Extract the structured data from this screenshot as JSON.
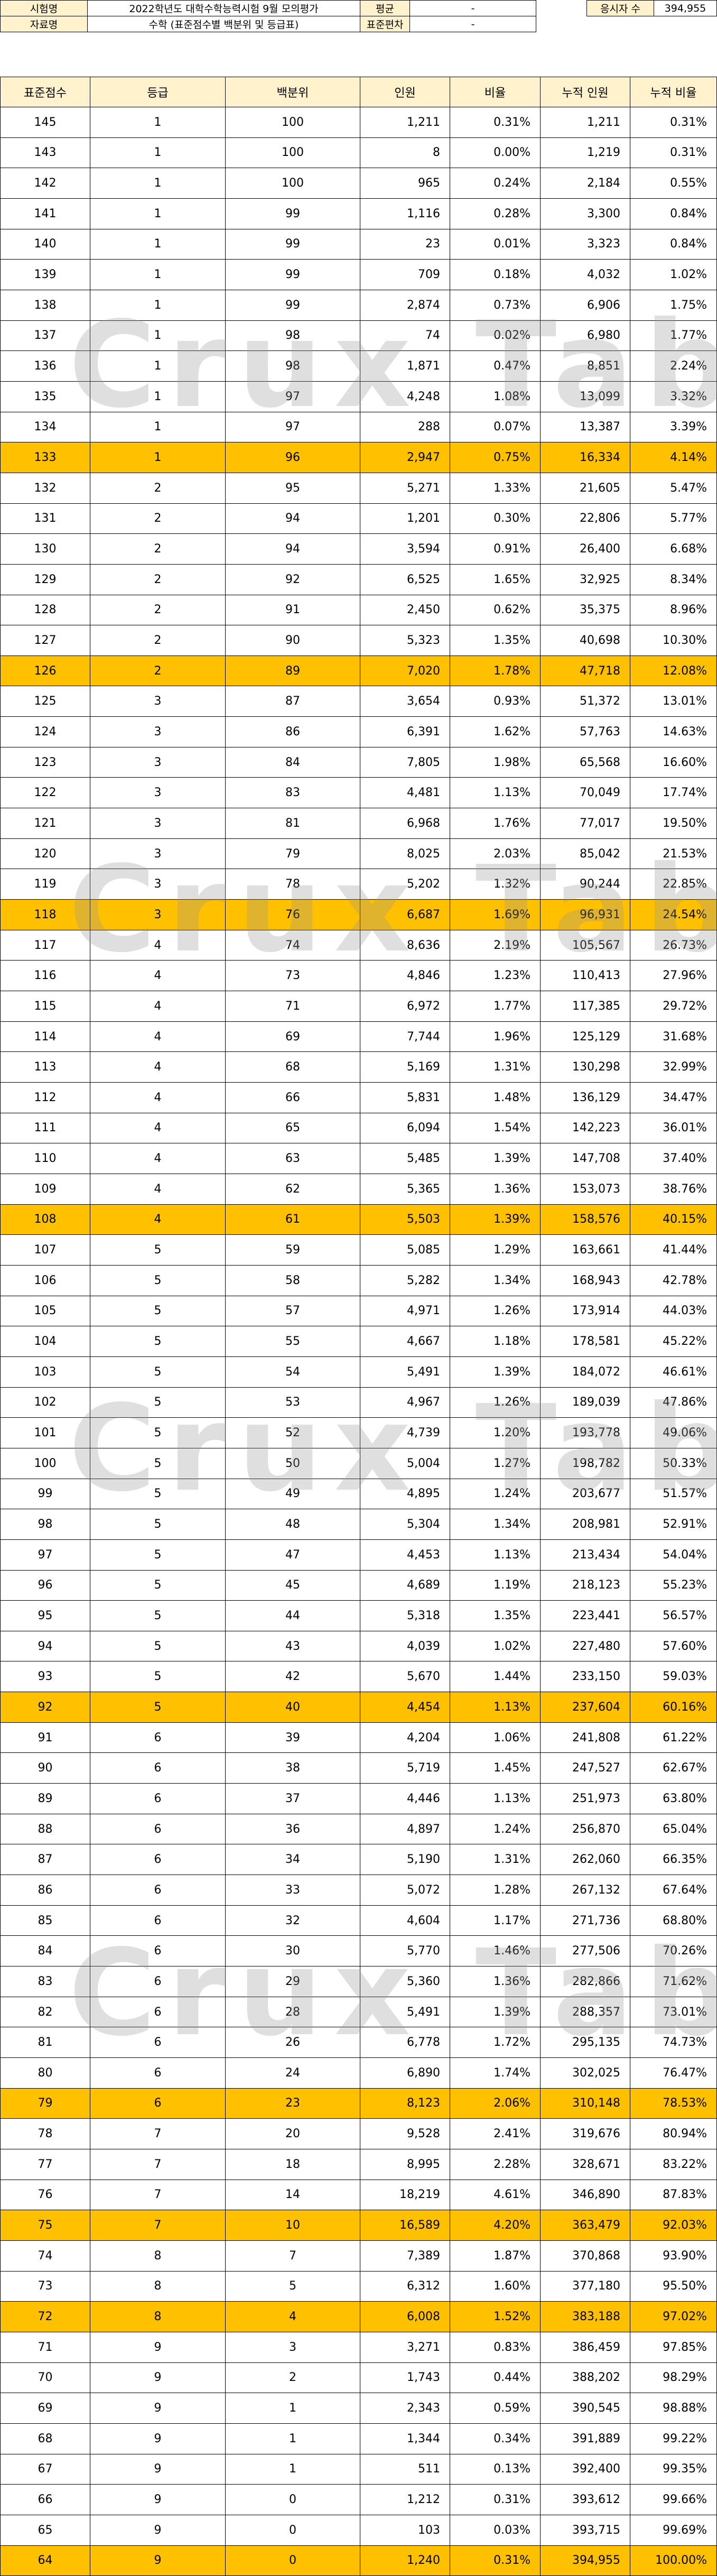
{
  "info": {
    "exam_label": "시험명",
    "exam_value": "2022학년도 대학수학능력시험 9월 모의평가",
    "data_label": "자료명",
    "data_value": "수학 (표준점수별 백분위 및 등급표)",
    "mean_label": "평균",
    "mean_value": "-",
    "sd_label": "표준편차",
    "sd_value": "-",
    "count_label": "응시자 수",
    "count_value": "394,955"
  },
  "watermark": "Crux Table",
  "columns": [
    "표준점수",
    "등급",
    "백분위",
    "인원",
    "비율",
    "누적 인원",
    "누적 비율"
  ],
  "rows": [
    {
      "score": "145",
      "grade": "1",
      "pct": "100",
      "n": "1,211",
      "ratio": "0.31%",
      "cum": "1,211",
      "cum_ratio": "0.31%",
      "hl": false
    },
    {
      "score": "143",
      "grade": "1",
      "pct": "100",
      "n": "8",
      "ratio": "0.00%",
      "cum": "1,219",
      "cum_ratio": "0.31%",
      "hl": false
    },
    {
      "score": "142",
      "grade": "1",
      "pct": "100",
      "n": "965",
      "ratio": "0.24%",
      "cum": "2,184",
      "cum_ratio": "0.55%",
      "hl": false
    },
    {
      "score": "141",
      "grade": "1",
      "pct": "99",
      "n": "1,116",
      "ratio": "0.28%",
      "cum": "3,300",
      "cum_ratio": "0.84%",
      "hl": false
    },
    {
      "score": "140",
      "grade": "1",
      "pct": "99",
      "n": "23",
      "ratio": "0.01%",
      "cum": "3,323",
      "cum_ratio": "0.84%",
      "hl": false
    },
    {
      "score": "139",
      "grade": "1",
      "pct": "99",
      "n": "709",
      "ratio": "0.18%",
      "cum": "4,032",
      "cum_ratio": "1.02%",
      "hl": false
    },
    {
      "score": "138",
      "grade": "1",
      "pct": "99",
      "n": "2,874",
      "ratio": "0.73%",
      "cum": "6,906",
      "cum_ratio": "1.75%",
      "hl": false
    },
    {
      "score": "137",
      "grade": "1",
      "pct": "98",
      "n": "74",
      "ratio": "0.02%",
      "cum": "6,980",
      "cum_ratio": "1.77%",
      "hl": false
    },
    {
      "score": "136",
      "grade": "1",
      "pct": "98",
      "n": "1,871",
      "ratio": "0.47%",
      "cum": "8,851",
      "cum_ratio": "2.24%",
      "hl": false
    },
    {
      "score": "135",
      "grade": "1",
      "pct": "97",
      "n": "4,248",
      "ratio": "1.08%",
      "cum": "13,099",
      "cum_ratio": "3.32%",
      "hl": false
    },
    {
      "score": "134",
      "grade": "1",
      "pct": "97",
      "n": "288",
      "ratio": "0.07%",
      "cum": "13,387",
      "cum_ratio": "3.39%",
      "hl": false
    },
    {
      "score": "133",
      "grade": "1",
      "pct": "96",
      "n": "2,947",
      "ratio": "0.75%",
      "cum": "16,334",
      "cum_ratio": "4.14%",
      "hl": true
    },
    {
      "score": "132",
      "grade": "2",
      "pct": "95",
      "n": "5,271",
      "ratio": "1.33%",
      "cum": "21,605",
      "cum_ratio": "5.47%",
      "hl": false
    },
    {
      "score": "131",
      "grade": "2",
      "pct": "94",
      "n": "1,201",
      "ratio": "0.30%",
      "cum": "22,806",
      "cum_ratio": "5.77%",
      "hl": false
    },
    {
      "score": "130",
      "grade": "2",
      "pct": "94",
      "n": "3,594",
      "ratio": "0.91%",
      "cum": "26,400",
      "cum_ratio": "6.68%",
      "hl": false
    },
    {
      "score": "129",
      "grade": "2",
      "pct": "92",
      "n": "6,525",
      "ratio": "1.65%",
      "cum": "32,925",
      "cum_ratio": "8.34%",
      "hl": false
    },
    {
      "score": "128",
      "grade": "2",
      "pct": "91",
      "n": "2,450",
      "ratio": "0.62%",
      "cum": "35,375",
      "cum_ratio": "8.96%",
      "hl": false
    },
    {
      "score": "127",
      "grade": "2",
      "pct": "90",
      "n": "5,323",
      "ratio": "1.35%",
      "cum": "40,698",
      "cum_ratio": "10.30%",
      "hl": false
    },
    {
      "score": "126",
      "grade": "2",
      "pct": "89",
      "n": "7,020",
      "ratio": "1.78%",
      "cum": "47,718",
      "cum_ratio": "12.08%",
      "hl": true
    },
    {
      "score": "125",
      "grade": "3",
      "pct": "87",
      "n": "3,654",
      "ratio": "0.93%",
      "cum": "51,372",
      "cum_ratio": "13.01%",
      "hl": false
    },
    {
      "score": "124",
      "grade": "3",
      "pct": "86",
      "n": "6,391",
      "ratio": "1.62%",
      "cum": "57,763",
      "cum_ratio": "14.63%",
      "hl": false
    },
    {
      "score": "123",
      "grade": "3",
      "pct": "84",
      "n": "7,805",
      "ratio": "1.98%",
      "cum": "65,568",
      "cum_ratio": "16.60%",
      "hl": false
    },
    {
      "score": "122",
      "grade": "3",
      "pct": "83",
      "n": "4,481",
      "ratio": "1.13%",
      "cum": "70,049",
      "cum_ratio": "17.74%",
      "hl": false
    },
    {
      "score": "121",
      "grade": "3",
      "pct": "81",
      "n": "6,968",
      "ratio": "1.76%",
      "cum": "77,017",
      "cum_ratio": "19.50%",
      "hl": false
    },
    {
      "score": "120",
      "grade": "3",
      "pct": "79",
      "n": "8,025",
      "ratio": "2.03%",
      "cum": "85,042",
      "cum_ratio": "21.53%",
      "hl": false
    },
    {
      "score": "119",
      "grade": "3",
      "pct": "78",
      "n": "5,202",
      "ratio": "1.32%",
      "cum": "90,244",
      "cum_ratio": "22.85%",
      "hl": false
    },
    {
      "score": "118",
      "grade": "3",
      "pct": "76",
      "n": "6,687",
      "ratio": "1.69%",
      "cum": "96,931",
      "cum_ratio": "24.54%",
      "hl": true
    },
    {
      "score": "117",
      "grade": "4",
      "pct": "74",
      "n": "8,636",
      "ratio": "2.19%",
      "cum": "105,567",
      "cum_ratio": "26.73%",
      "hl": false
    },
    {
      "score": "116",
      "grade": "4",
      "pct": "73",
      "n": "4,846",
      "ratio": "1.23%",
      "cum": "110,413",
      "cum_ratio": "27.96%",
      "hl": false
    },
    {
      "score": "115",
      "grade": "4",
      "pct": "71",
      "n": "6,972",
      "ratio": "1.77%",
      "cum": "117,385",
      "cum_ratio": "29.72%",
      "hl": false
    },
    {
      "score": "114",
      "grade": "4",
      "pct": "69",
      "n": "7,744",
      "ratio": "1.96%",
      "cum": "125,129",
      "cum_ratio": "31.68%",
      "hl": false
    },
    {
      "score": "113",
      "grade": "4",
      "pct": "68",
      "n": "5,169",
      "ratio": "1.31%",
      "cum": "130,298",
      "cum_ratio": "32.99%",
      "hl": false
    },
    {
      "score": "112",
      "grade": "4",
      "pct": "66",
      "n": "5,831",
      "ratio": "1.48%",
      "cum": "136,129",
      "cum_ratio": "34.47%",
      "hl": false
    },
    {
      "score": "111",
      "grade": "4",
      "pct": "65",
      "n": "6,094",
      "ratio": "1.54%",
      "cum": "142,223",
      "cum_ratio": "36.01%",
      "hl": false
    },
    {
      "score": "110",
      "grade": "4",
      "pct": "63",
      "n": "5,485",
      "ratio": "1.39%",
      "cum": "147,708",
      "cum_ratio": "37.40%",
      "hl": false
    },
    {
      "score": "109",
      "grade": "4",
      "pct": "62",
      "n": "5,365",
      "ratio": "1.36%",
      "cum": "153,073",
      "cum_ratio": "38.76%",
      "hl": false
    },
    {
      "score": "108",
      "grade": "4",
      "pct": "61",
      "n": "5,503",
      "ratio": "1.39%",
      "cum": "158,576",
      "cum_ratio": "40.15%",
      "hl": true
    },
    {
      "score": "107",
      "grade": "5",
      "pct": "59",
      "n": "5,085",
      "ratio": "1.29%",
      "cum": "163,661",
      "cum_ratio": "41.44%",
      "hl": false
    },
    {
      "score": "106",
      "grade": "5",
      "pct": "58",
      "n": "5,282",
      "ratio": "1.34%",
      "cum": "168,943",
      "cum_ratio": "42.78%",
      "hl": false
    },
    {
      "score": "105",
      "grade": "5",
      "pct": "57",
      "n": "4,971",
      "ratio": "1.26%",
      "cum": "173,914",
      "cum_ratio": "44.03%",
      "hl": false
    },
    {
      "score": "104",
      "grade": "5",
      "pct": "55",
      "n": "4,667",
      "ratio": "1.18%",
      "cum": "178,581",
      "cum_ratio": "45.22%",
      "hl": false
    },
    {
      "score": "103",
      "grade": "5",
      "pct": "54",
      "n": "5,491",
      "ratio": "1.39%",
      "cum": "184,072",
      "cum_ratio": "46.61%",
      "hl": false
    },
    {
      "score": "102",
      "grade": "5",
      "pct": "53",
      "n": "4,967",
      "ratio": "1.26%",
      "cum": "189,039",
      "cum_ratio": "47.86%",
      "hl": false
    },
    {
      "score": "101",
      "grade": "5",
      "pct": "52",
      "n": "4,739",
      "ratio": "1.20%",
      "cum": "193,778",
      "cum_ratio": "49.06%",
      "hl": false
    },
    {
      "score": "100",
      "grade": "5",
      "pct": "50",
      "n": "5,004",
      "ratio": "1.27%",
      "cum": "198,782",
      "cum_ratio": "50.33%",
      "hl": false
    },
    {
      "score": "99",
      "grade": "5",
      "pct": "49",
      "n": "4,895",
      "ratio": "1.24%",
      "cum": "203,677",
      "cum_ratio": "51.57%",
      "hl": false
    },
    {
      "score": "98",
      "grade": "5",
      "pct": "48",
      "n": "5,304",
      "ratio": "1.34%",
      "cum": "208,981",
      "cum_ratio": "52.91%",
      "hl": false
    },
    {
      "score": "97",
      "grade": "5",
      "pct": "47",
      "n": "4,453",
      "ratio": "1.13%",
      "cum": "213,434",
      "cum_ratio": "54.04%",
      "hl": false
    },
    {
      "score": "96",
      "grade": "5",
      "pct": "45",
      "n": "4,689",
      "ratio": "1.19%",
      "cum": "218,123",
      "cum_ratio": "55.23%",
      "hl": false
    },
    {
      "score": "95",
      "grade": "5",
      "pct": "44",
      "n": "5,318",
      "ratio": "1.35%",
      "cum": "223,441",
      "cum_ratio": "56.57%",
      "hl": false
    },
    {
      "score": "94",
      "grade": "5",
      "pct": "43",
      "n": "4,039",
      "ratio": "1.02%",
      "cum": "227,480",
      "cum_ratio": "57.60%",
      "hl": false
    },
    {
      "score": "93",
      "grade": "5",
      "pct": "42",
      "n": "5,670",
      "ratio": "1.44%",
      "cum": "233,150",
      "cum_ratio": "59.03%",
      "hl": false
    },
    {
      "score": "92",
      "grade": "5",
      "pct": "40",
      "n": "4,454",
      "ratio": "1.13%",
      "cum": "237,604",
      "cum_ratio": "60.16%",
      "hl": true
    },
    {
      "score": "91",
      "grade": "6",
      "pct": "39",
      "n": "4,204",
      "ratio": "1.06%",
      "cum": "241,808",
      "cum_ratio": "61.22%",
      "hl": false
    },
    {
      "score": "90",
      "grade": "6",
      "pct": "38",
      "n": "5,719",
      "ratio": "1.45%",
      "cum": "247,527",
      "cum_ratio": "62.67%",
      "hl": false
    },
    {
      "score": "89",
      "grade": "6",
      "pct": "37",
      "n": "4,446",
      "ratio": "1.13%",
      "cum": "251,973",
      "cum_ratio": "63.80%",
      "hl": false
    },
    {
      "score": "88",
      "grade": "6",
      "pct": "36",
      "n": "4,897",
      "ratio": "1.24%",
      "cum": "256,870",
      "cum_ratio": "65.04%",
      "hl": false
    },
    {
      "score": "87",
      "grade": "6",
      "pct": "34",
      "n": "5,190",
      "ratio": "1.31%",
      "cum": "262,060",
      "cum_ratio": "66.35%",
      "hl": false
    },
    {
      "score": "86",
      "grade": "6",
      "pct": "33",
      "n": "5,072",
      "ratio": "1.28%",
      "cum": "267,132",
      "cum_ratio": "67.64%",
      "hl": false
    },
    {
      "score": "85",
      "grade": "6",
      "pct": "32",
      "n": "4,604",
      "ratio": "1.17%",
      "cum": "271,736",
      "cum_ratio": "68.80%",
      "hl": false
    },
    {
      "score": "84",
      "grade": "6",
      "pct": "30",
      "n": "5,770",
      "ratio": "1.46%",
      "cum": "277,506",
      "cum_ratio": "70.26%",
      "hl": false
    },
    {
      "score": "83",
      "grade": "6",
      "pct": "29",
      "n": "5,360",
      "ratio": "1.36%",
      "cum": "282,866",
      "cum_ratio": "71.62%",
      "hl": false
    },
    {
      "score": "82",
      "grade": "6",
      "pct": "28",
      "n": "5,491",
      "ratio": "1.39%",
      "cum": "288,357",
      "cum_ratio": "73.01%",
      "hl": false
    },
    {
      "score": "81",
      "grade": "6",
      "pct": "26",
      "n": "6,778",
      "ratio": "1.72%",
      "cum": "295,135",
      "cum_ratio": "74.73%",
      "hl": false
    },
    {
      "score": "80",
      "grade": "6",
      "pct": "24",
      "n": "6,890",
      "ratio": "1.74%",
      "cum": "302,025",
      "cum_ratio": "76.47%",
      "hl": false
    },
    {
      "score": "79",
      "grade": "6",
      "pct": "23",
      "n": "8,123",
      "ratio": "2.06%",
      "cum": "310,148",
      "cum_ratio": "78.53%",
      "hl": true
    },
    {
      "score": "78",
      "grade": "7",
      "pct": "20",
      "n": "9,528",
      "ratio": "2.41%",
      "cum": "319,676",
      "cum_ratio": "80.94%",
      "hl": false
    },
    {
      "score": "77",
      "grade": "7",
      "pct": "18",
      "n": "8,995",
      "ratio": "2.28%",
      "cum": "328,671",
      "cum_ratio": "83.22%",
      "hl": false
    },
    {
      "score": "76",
      "grade": "7",
      "pct": "14",
      "n": "18,219",
      "ratio": "4.61%",
      "cum": "346,890",
      "cum_ratio": "87.83%",
      "hl": false
    },
    {
      "score": "75",
      "grade": "7",
      "pct": "10",
      "n": "16,589",
      "ratio": "4.20%",
      "cum": "363,479",
      "cum_ratio": "92.03%",
      "hl": true
    },
    {
      "score": "74",
      "grade": "8",
      "pct": "7",
      "n": "7,389",
      "ratio": "1.87%",
      "cum": "370,868",
      "cum_ratio": "93.90%",
      "hl": false
    },
    {
      "score": "73",
      "grade": "8",
      "pct": "5",
      "n": "6,312",
      "ratio": "1.60%",
      "cum": "377,180",
      "cum_ratio": "95.50%",
      "hl": false
    },
    {
      "score": "72",
      "grade": "8",
      "pct": "4",
      "n": "6,008",
      "ratio": "1.52%",
      "cum": "383,188",
      "cum_ratio": "97.02%",
      "hl": true
    },
    {
      "score": "71",
      "grade": "9",
      "pct": "3",
      "n": "3,271",
      "ratio": "0.83%",
      "cum": "386,459",
      "cum_ratio": "97.85%",
      "hl": false
    },
    {
      "score": "70",
      "grade": "9",
      "pct": "2",
      "n": "1,743",
      "ratio": "0.44%",
      "cum": "388,202",
      "cum_ratio": "98.29%",
      "hl": false
    },
    {
      "score": "69",
      "grade": "9",
      "pct": "1",
      "n": "2,343",
      "ratio": "0.59%",
      "cum": "390,545",
      "cum_ratio": "98.88%",
      "hl": false
    },
    {
      "score": "68",
      "grade": "9",
      "pct": "1",
      "n": "1,344",
      "ratio": "0.34%",
      "cum": "391,889",
      "cum_ratio": "99.22%",
      "hl": false
    },
    {
      "score": "67",
      "grade": "9",
      "pct": "1",
      "n": "511",
      "ratio": "0.13%",
      "cum": "392,400",
      "cum_ratio": "99.35%",
      "hl": false
    },
    {
      "score": "66",
      "grade": "9",
      "pct": "0",
      "n": "1,212",
      "ratio": "0.31%",
      "cum": "393,612",
      "cum_ratio": "99.66%",
      "hl": false
    },
    {
      "score": "65",
      "grade": "9",
      "pct": "0",
      "n": "103",
      "ratio": "0.03%",
      "cum": "393,715",
      "cum_ratio": "99.69%",
      "hl": false
    },
    {
      "score": "64",
      "grade": "9",
      "pct": "0",
      "n": "1,240",
      "ratio": "0.31%",
      "cum": "394,955",
      "cum_ratio": "100.00%",
      "hl": true
    }
  ]
}
